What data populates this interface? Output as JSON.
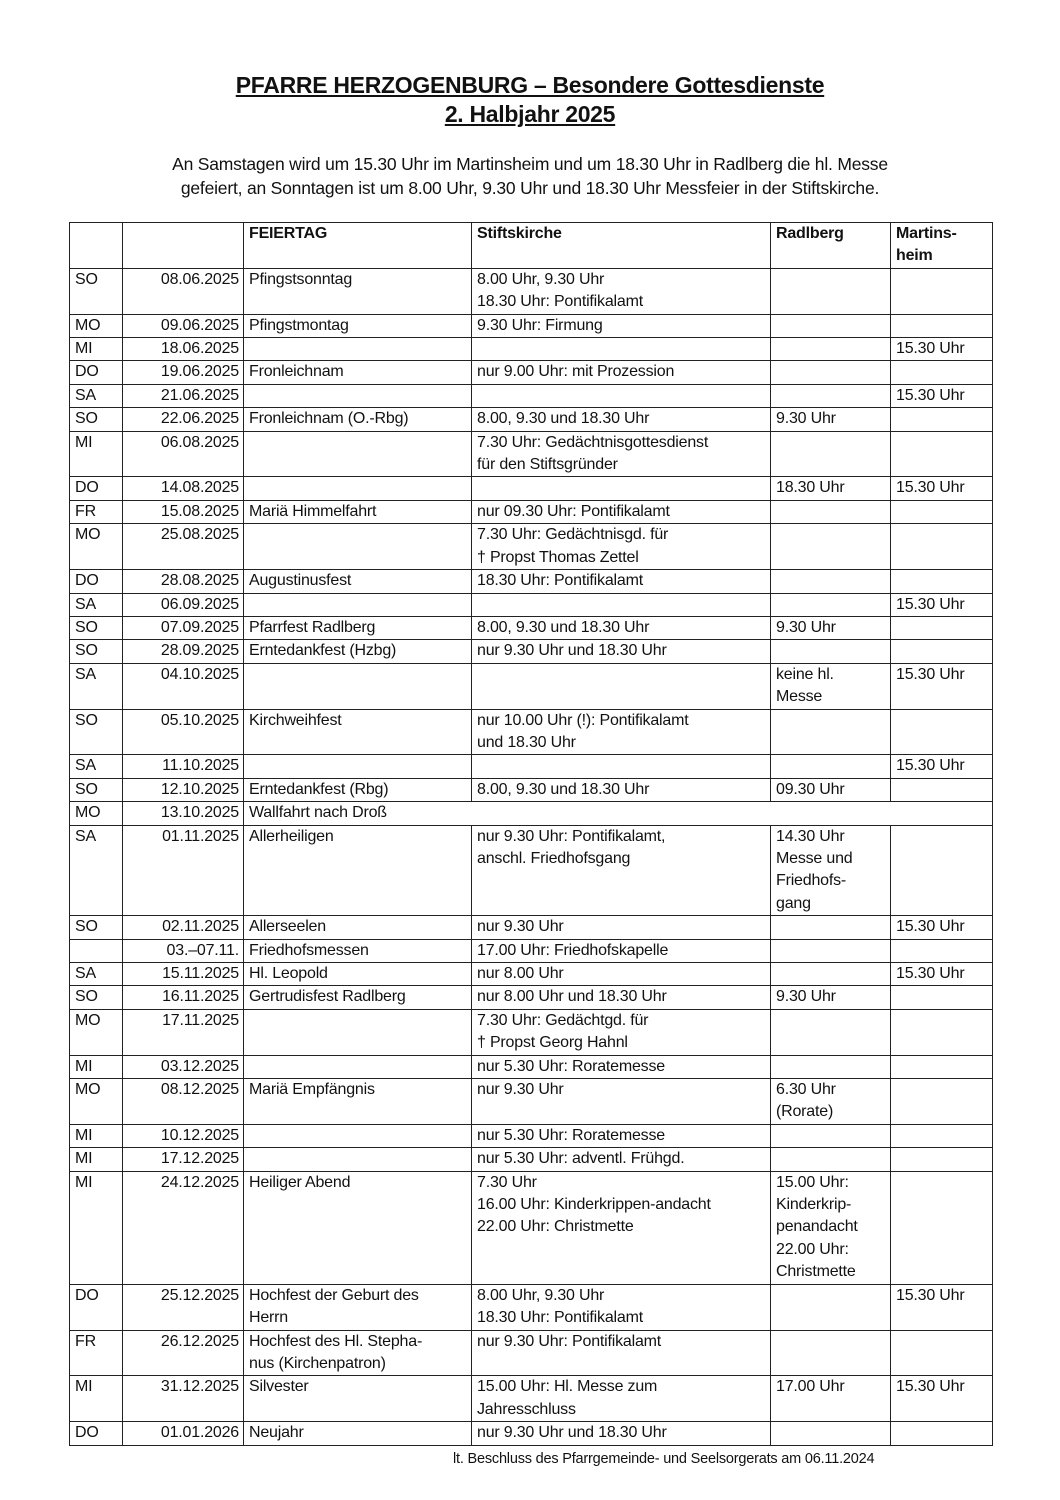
{
  "header": {
    "title": "PFARRE HERZOGENBURG – Besondere Gottesdienste",
    "subtitle": "2. Halbjahr 2025",
    "intro": "An Samstagen wird um 15.30 Uhr im Martinsheim und um 18.30 Uhr in Radlberg die hl. Messe\ngefeiert, an Sonntagen ist um 8.00 Uhr, 9.30 Uhr und 18.30 Uhr Messfeier in der Stiftskirche."
  },
  "table": {
    "columns": [
      "",
      "",
      "FEIERTAG",
      "Stiftskirche",
      "Radlberg",
      "Martins-\nheim"
    ],
    "rows": [
      [
        "SO",
        "08.06.2025",
        "Pfingstsonntag",
        "8.00 Uhr, 9.30 Uhr\n18.30 Uhr: Pontifikalamt",
        "",
        ""
      ],
      [
        "MO",
        "09.06.2025",
        "Pfingstmontag",
        "9.30 Uhr: Firmung",
        "",
        ""
      ],
      [
        "MI",
        "18.06.2025",
        "",
        "",
        "",
        "15.30 Uhr"
      ],
      [
        "DO",
        "19.06.2025",
        "Fronleichnam",
        "nur 9.00 Uhr: mit Prozession",
        "",
        ""
      ],
      [
        "SA",
        "21.06.2025",
        "",
        "",
        "",
        "15.30 Uhr"
      ],
      [
        "SO",
        "22.06.2025",
        "Fronleichnam (O.-Rbg)",
        "8.00, 9.30 und 18.30 Uhr",
        "9.30 Uhr",
        ""
      ],
      [
        "MI",
        "06.08.2025",
        "",
        "7.30 Uhr: Gedächtnisgottesdienst\nfür den Stiftsgründer",
        "",
        ""
      ],
      [
        "DO",
        "14.08.2025",
        "",
        "",
        "18.30 Uhr",
        "15.30 Uhr"
      ],
      [
        "FR",
        "15.08.2025",
        "Mariä Himmelfahrt",
        "nur 09.30 Uhr: Pontifikalamt",
        "",
        ""
      ],
      [
        "MO",
        "25.08.2025",
        "",
        "7.30 Uhr: Gedächtnisgd. für\n† Propst Thomas Zettel",
        "",
        ""
      ],
      [
        "DO",
        "28.08.2025",
        "Augustinusfest",
        "18.30 Uhr: Pontifikalamt",
        "",
        ""
      ],
      [
        "SA",
        "06.09.2025",
        "",
        "",
        "",
        "15.30 Uhr"
      ],
      [
        "SO",
        "07.09.2025",
        "Pfarrfest Radlberg",
        "8.00, 9.30 und 18.30 Uhr",
        "9.30 Uhr",
        ""
      ],
      [
        "SO",
        "28.09.2025",
        "Erntedankfest (Hzbg)",
        "nur 9.30 Uhr und 18.30 Uhr",
        "",
        ""
      ],
      [
        "SA",
        "04.10.2025",
        "",
        "",
        "keine hl.\nMesse",
        "15.30 Uhr"
      ],
      [
        "SO",
        "05.10.2025",
        "Kirchweihfest",
        "nur 10.00 Uhr (!): Pontifikalamt\nund 18.30 Uhr",
        "",
        ""
      ],
      [
        "SA",
        "11.10.2025",
        "",
        "",
        "",
        "15.30 Uhr"
      ],
      [
        "SO",
        "12.10.2025",
        "Erntedankfest (Rbg)",
        "8.00, 9.30 und 18.30 Uhr",
        "09.30 Uhr",
        ""
      ],
      [
        "MO",
        "13.10.2025",
        "Wallfahrt nach Droß"
      ],
      [
        "SA",
        "01.11.2025",
        "Allerheiligen",
        "nur 9.30 Uhr: Pontifikalamt,\nanschl. Friedhofsgang",
        "14.30 Uhr\nMesse und\nFriedhofs-\ngang",
        ""
      ],
      [
        "SO",
        "02.11.2025",
        "Allerseelen",
        "nur 9.30 Uhr",
        "",
        "15.30 Uhr"
      ],
      [
        "",
        "03.–07.11.",
        "Friedhofsmessen",
        "17.00 Uhr: Friedhofskapelle",
        "",
        ""
      ],
      [
        "SA",
        "15.11.2025",
        "Hl. Leopold",
        "nur 8.00 Uhr",
        "",
        "15.30 Uhr"
      ],
      [
        "SO",
        "16.11.2025",
        "Gertrudisfest Radlberg",
        "nur 8.00 Uhr und 18.30 Uhr",
        "9.30 Uhr",
        ""
      ],
      [
        "MO",
        "17.11.2025",
        "",
        "7.30 Uhr: Gedächtgd. für\n† Propst Georg Hahnl",
        "",
        ""
      ],
      [
        "MI",
        "03.12.2025",
        "",
        "nur 5.30 Uhr: Roratemesse",
        "",
        ""
      ],
      [
        "MO",
        "08.12.2025",
        "Mariä Empfängnis",
        "nur 9.30 Uhr",
        "6.30 Uhr\n(Rorate)",
        ""
      ],
      [
        "MI",
        "10.12.2025",
        "",
        "nur 5.30 Uhr: Roratemesse",
        "",
        ""
      ],
      [
        "MI",
        "17.12.2025",
        "",
        "nur 5.30 Uhr: adventl. Frühgd.",
        "",
        ""
      ],
      [
        "MI",
        "24.12.2025",
        "Heiliger Abend",
        "7.30 Uhr\n16.00 Uhr: Kinderkrippen-andacht\n22.00 Uhr: Christmette",
        "15.00 Uhr:\nKinderkrip-\npenandacht\n22.00 Uhr:\nChristmette",
        ""
      ],
      [
        "DO",
        "25.12.2025",
        "Hochfest der Geburt des\nHerrn",
        "8.00 Uhr, 9.30 Uhr\n18.30 Uhr: Pontifikalamt",
        "",
        "15.30 Uhr"
      ],
      [
        "FR",
        "26.12.2025",
        "Hochfest des Hl. Stepha-\nnus (Kirchenpatron)",
        "nur 9.30 Uhr: Pontifikalamt",
        "",
        ""
      ],
      [
        "MI",
        "31.12.2025",
        "Silvester",
        "15.00 Uhr: Hl. Messe zum\nJahresschluss",
        "17.00 Uhr",
        "15.30 Uhr"
      ],
      [
        "DO",
        "01.01.2026",
        "Neujahr",
        "nur 9.30 Uhr und 18.30 Uhr",
        "",
        ""
      ]
    ]
  },
  "footer": "lt. Beschluss des Pfarrgemeinde- und Seelsorgerats am 06.11.2024"
}
